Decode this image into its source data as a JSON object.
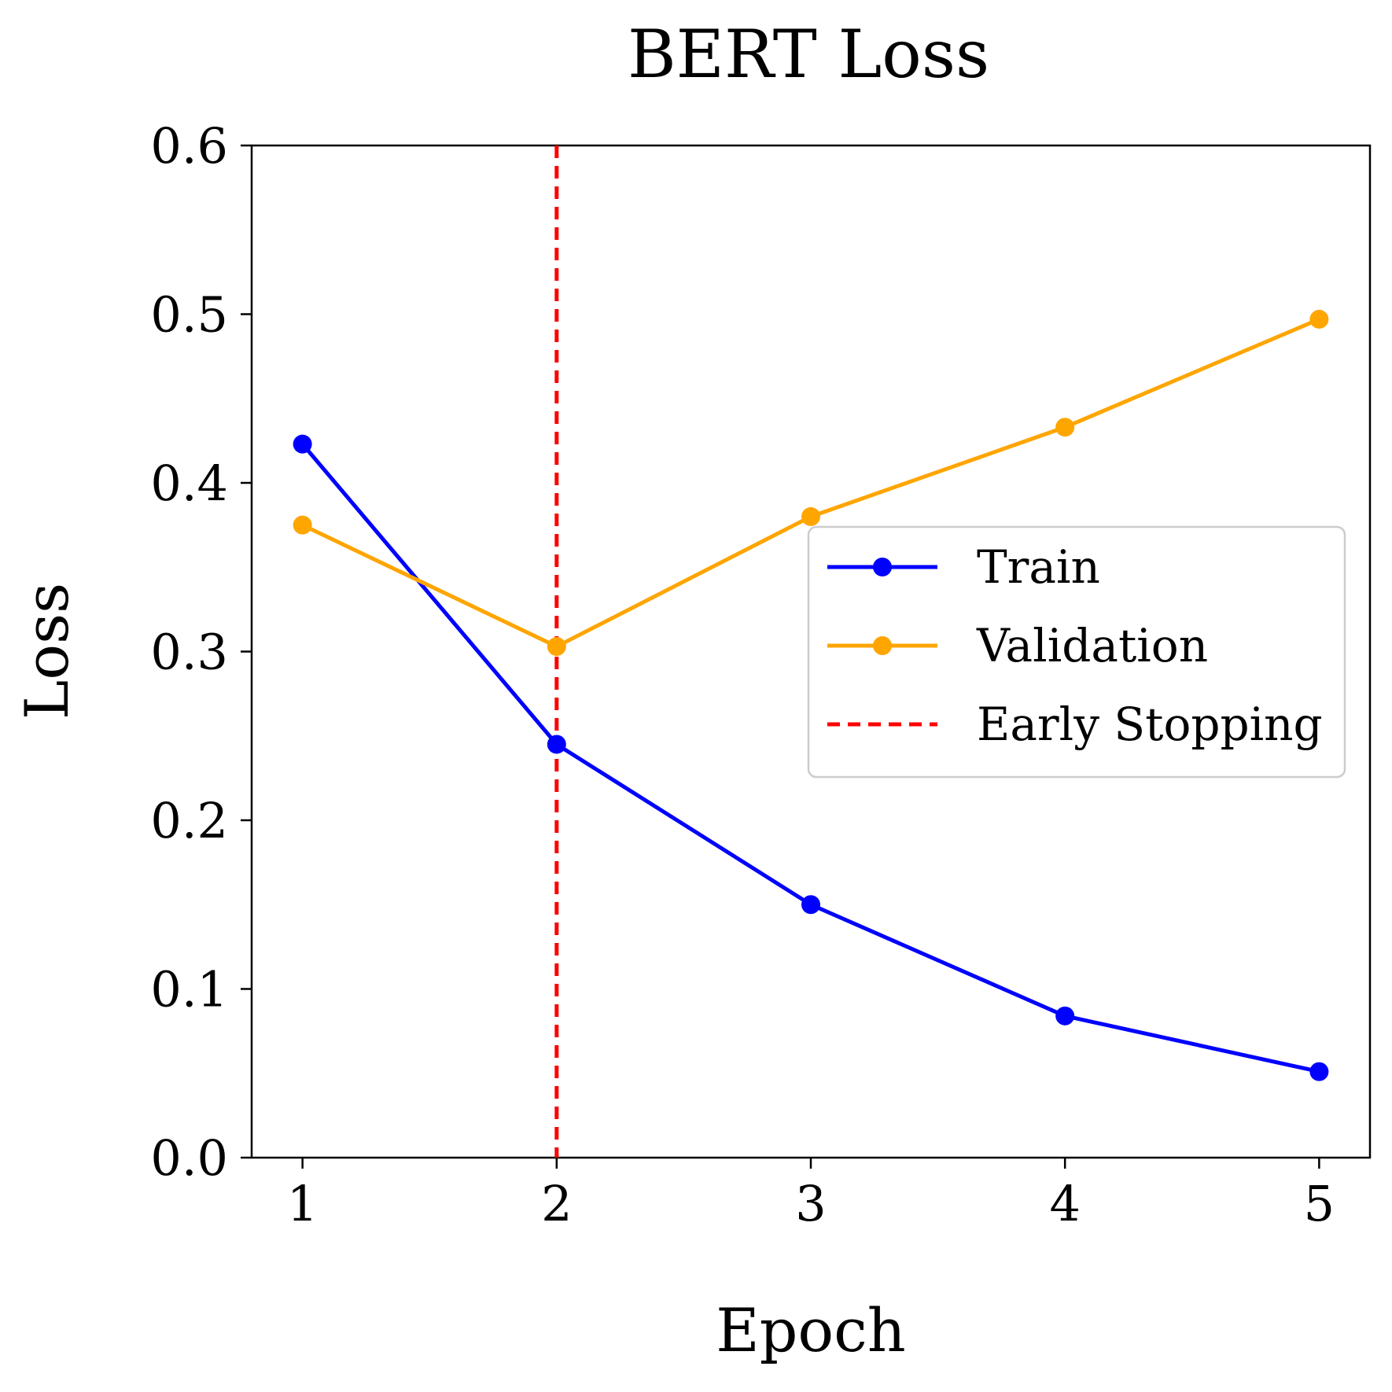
{
  "chart_data": {
    "type": "line",
    "title": "BERT Loss",
    "xlabel": "Epoch",
    "ylabel": "Loss",
    "x": [
      1,
      2,
      3,
      4,
      5
    ],
    "xlim": [
      0.8,
      5.2
    ],
    "ylim": [
      0.0,
      0.6
    ],
    "xticks": [
      1,
      2,
      3,
      4,
      5
    ],
    "yticks": [
      0.0,
      0.1,
      0.2,
      0.3,
      0.4,
      0.5,
      0.6
    ],
    "ytick_labels": [
      "0.0",
      "0.1",
      "0.2",
      "0.3",
      "0.4",
      "0.5",
      "0.6"
    ],
    "grid": false,
    "legend_position": "center-right",
    "series": [
      {
        "name": "Train",
        "color": "#0000ff",
        "marker": "circle",
        "values": [
          0.423,
          0.245,
          0.15,
          0.084,
          0.051
        ]
      },
      {
        "name": "Validation",
        "color": "#ffa500",
        "marker": "circle",
        "values": [
          0.375,
          0.303,
          0.38,
          0.433,
          0.497
        ]
      }
    ],
    "vlines": [
      {
        "name": "Early Stopping",
        "x": 2,
        "color": "#ff0000",
        "style": "dashed"
      }
    ]
  }
}
